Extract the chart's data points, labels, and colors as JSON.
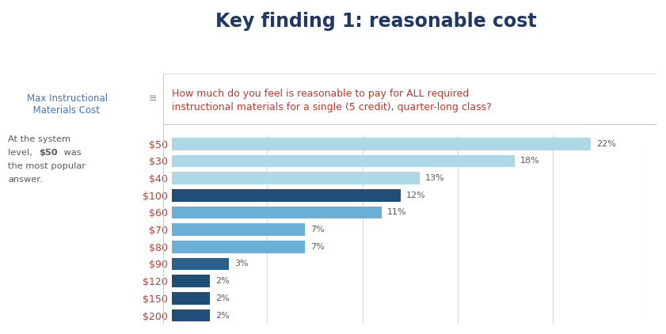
{
  "title": "Key finding 1: reasonable cost",
  "categories": [
    "$50",
    "$30",
    "$40",
    "$100",
    "$60",
    "$70",
    "$80",
    "$90",
    "$120",
    "$150",
    "$200"
  ],
  "values": [
    22,
    18,
    13,
    12,
    11,
    7,
    7,
    3,
    2,
    2,
    2
  ],
  "bar_colors": [
    "#add8e6",
    "#add8e6",
    "#add8e6",
    "#1f4e79",
    "#6baed6",
    "#6baed6",
    "#6baed6",
    "#2c5f8a",
    "#1f4e79",
    "#1f4e79",
    "#1f4e79"
  ],
  "xlim": [
    0,
    25
  ],
  "title_fontsize": 17,
  "title_color": "#1f3864",
  "title_fontweight": "bold",
  "bar_label_color": "#595959",
  "annotation_line1": "At the system",
  "annotation_line2_pre": "level, ",
  "annotation_line2_bold": "$50",
  "annotation_line2_post": " was",
  "annotation_line3": "the most popular",
  "annotation_line4": "answer.",
  "annotation_color": "#595959",
  "question_text_line1": "How much do you feel is reasonable to pay for ALL required",
  "question_text_line2": "instructional materials for a single (5 credit), quarter-long class?",
  "question_text_color": "#c0392b",
  "axis_label_line1": "Max Instructional",
  "axis_label_line2": "  Materials Cost",
  "axis_label_color": "#4472c4",
  "ytick_color": "#c0392b",
  "background_color": "#ffffff",
  "grid_color": "#d9d9d9"
}
